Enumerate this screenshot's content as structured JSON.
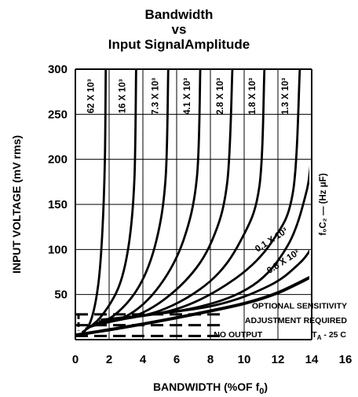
{
  "chart_data": {
    "type": "line",
    "title_lines": [
      "Bandwidth",
      "vs",
      "Input SignalAmplitude"
    ],
    "xlabel": "BANDWIDTH (%OF f",
    "xlabel_sub": "0",
    "xlabel_close": ")",
    "ylabel": "INPUT VOLTAGE (mV rms)",
    "xlim": [
      0,
      16
    ],
    "ylim": [
      0,
      300
    ],
    "x_ticks": [
      "0",
      "2",
      "4",
      "6",
      "8",
      "10",
      "12",
      "14",
      "16"
    ],
    "y_ticks": [
      "50",
      "100",
      "150",
      "200",
      "250",
      "300"
    ],
    "grid": true,
    "curve_family_label": "f₀C₂ — (Hz μF)",
    "series": [
      {
        "name": "62 X 10³",
        "points": [
          [
            0.3,
            5
          ],
          [
            0.9,
            20
          ],
          [
            1.35,
            60
          ],
          [
            1.6,
            120
          ],
          [
            1.75,
            200
          ],
          [
            1.8,
            300
          ]
        ]
      },
      {
        "name": "16 X 10³",
        "points": [
          [
            0.4,
            8
          ],
          [
            1.5,
            25
          ],
          [
            2.6,
            60
          ],
          [
            3.2,
            110
          ],
          [
            3.5,
            180
          ],
          [
            3.6,
            300
          ]
        ]
      },
      {
        "name": "7.3 X 10³",
        "points": [
          [
            0.6,
            12
          ],
          [
            2.3,
            27
          ],
          [
            3.8,
            60
          ],
          [
            4.8,
            110
          ],
          [
            5.35,
            180
          ],
          [
            5.5,
            300
          ]
        ]
      },
      {
        "name": "4.1 X 10³",
        "points": [
          [
            0.8,
            14
          ],
          [
            3.2,
            28
          ],
          [
            5.0,
            60
          ],
          [
            6.4,
            110
          ],
          [
            7.2,
            180
          ],
          [
            7.4,
            300
          ]
        ]
      },
      {
        "name": "2.8 X 10³",
        "points": [
          [
            1.0,
            16
          ],
          [
            4.0,
            30
          ],
          [
            6.5,
            65
          ],
          [
            8.1,
            110
          ],
          [
            9.0,
            175
          ],
          [
            9.3,
            300
          ]
        ]
      },
      {
        "name": "1.8 X 10³",
        "points": [
          [
            1.2,
            18
          ],
          [
            5.0,
            32
          ],
          [
            8.0,
            65
          ],
          [
            9.8,
            110
          ],
          [
            10.9,
            170
          ],
          [
            11.2,
            300
          ]
        ]
      },
      {
        "name": "1.3 X 10³",
        "points": [
          [
            1.4,
            20
          ],
          [
            6.0,
            34
          ],
          [
            9.5,
            68
          ],
          [
            11.7,
            110
          ],
          [
            12.9,
            165
          ],
          [
            13.3,
            300
          ]
        ]
      },
      {
        "name": "0.1 X 10³",
        "points": [
          [
            1.5,
            22
          ],
          [
            7.0,
            35
          ],
          [
            10.5,
            60
          ],
          [
            12.6,
            105
          ],
          [
            13.7,
            165
          ],
          [
            14.0,
            210
          ]
        ]
      },
      {
        "name": "0.8 X 10²",
        "points": [
          [
            1.8,
            22
          ],
          [
            8.0,
            37
          ],
          [
            11.5,
            60
          ],
          [
            13.3,
            85
          ],
          [
            14.0,
            102
          ]
        ]
      }
    ],
    "limit_line": {
      "name": "",
      "points": [
        [
          0,
          5
        ],
        [
          3,
          14
        ],
        [
          7,
          28
        ],
        [
          10,
          40
        ],
        [
          12,
          52
        ],
        [
          14,
          70
        ]
      ]
    },
    "dashed_levels": [
      {
        "label": "OPTIONAL SENSITIVITY",
        "y": 28
      },
      {
        "label": "ADJUSTMENT REQUIRED",
        "y": 16
      },
      {
        "label": "NO OUTPUT",
        "y": 4
      }
    ],
    "temp_note": "T",
    "temp_note_sub": "A",
    "temp_note_rest": " - 25 C"
  }
}
